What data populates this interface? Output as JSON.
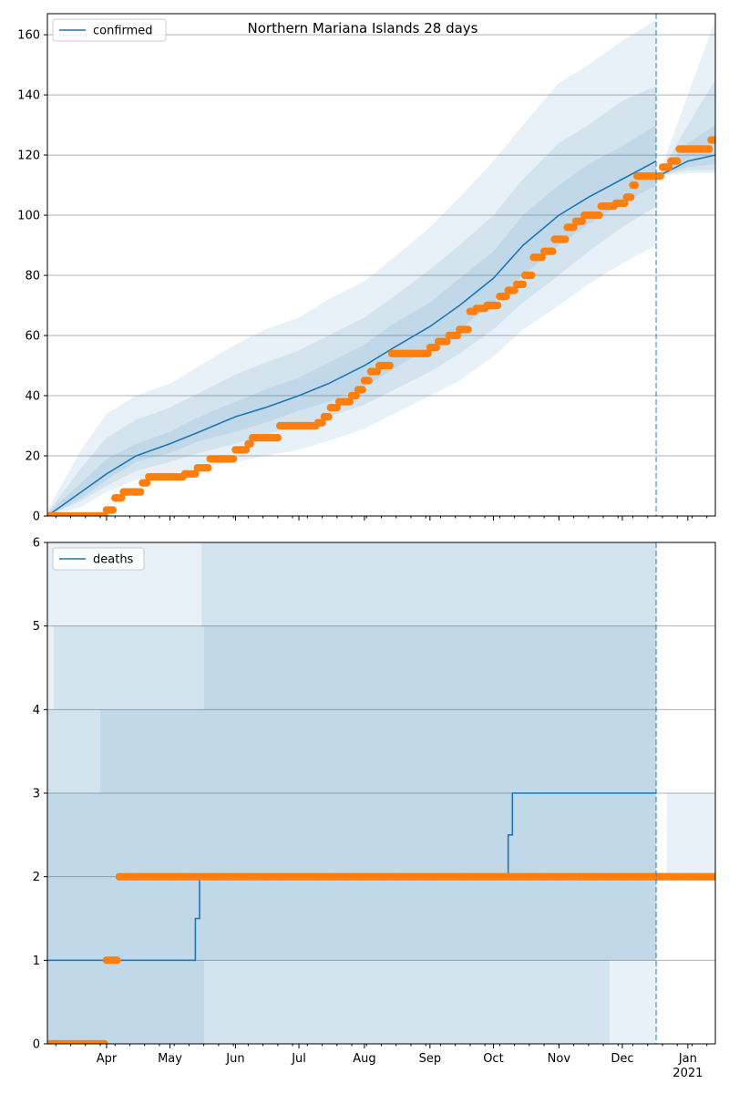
{
  "title": "Northern Mariana Islands 28 days",
  "colors": {
    "model": "#1f77b4",
    "observed": "#ff7f0e",
    "band": "#1f77b4",
    "grid": "#b0b0b0",
    "forecast_line": "#1f77b4"
  },
  "x_axis": {
    "months": [
      "Apr",
      "May",
      "Jun",
      "Jul",
      "Aug",
      "Sep",
      "Oct",
      "Nov",
      "Dec",
      "Jan"
    ],
    "year_label": "2021",
    "start": "2020-03-04",
    "end": "2021-01-14",
    "forecast_start": "2020-12-17"
  },
  "chart_data": [
    {
      "type": "line",
      "name": "confirmed-panel",
      "legend": "confirmed",
      "ylim": [
        0,
        167
      ],
      "yticks": [
        0,
        20,
        40,
        60,
        80,
        100,
        120,
        140,
        160
      ],
      "grid": true,
      "legend_position": "top-left",
      "model_series": {
        "name": "confirmed",
        "x": [
          "2020-03-04",
          "2020-03-20",
          "2020-04-01",
          "2020-04-15",
          "2020-05-01",
          "2020-05-15",
          "2020-06-01",
          "2020-06-15",
          "2020-07-01",
          "2020-07-15",
          "2020-08-01",
          "2020-08-15",
          "2020-09-01",
          "2020-09-15",
          "2020-10-01",
          "2020-10-15",
          "2020-11-01",
          "2020-11-15",
          "2020-12-01",
          "2020-12-17",
          "2020-12-18",
          "2021-01-01",
          "2021-01-14"
        ],
        "y": [
          0,
          8,
          14,
          20,
          24,
          28,
          33,
          36,
          40,
          44,
          50,
          56,
          63,
          70,
          79,
          90,
          100,
          106,
          112,
          118,
          113,
          118,
          120
        ]
      },
      "bands": [
        {
          "lower": [
            0,
            3,
            8,
            12,
            14,
            16,
            18,
            20,
            22,
            25,
            29,
            34,
            40,
            45,
            53,
            62,
            70,
            77,
            84,
            90,
            113,
            114,
            114
          ],
          "upper": [
            2,
            22,
            34,
            40,
            44,
            50,
            57,
            62,
            66,
            72,
            78,
            86,
            96,
            106,
            118,
            130,
            144,
            150,
            158,
            165,
            113,
            140,
            165
          ]
        },
        {
          "lower": [
            0,
            5,
            10,
            15,
            18,
            21,
            24,
            27,
            30,
            33,
            37,
            42,
            48,
            54,
            62,
            71,
            80,
            88,
            96,
            103,
            113,
            115,
            115
          ],
          "upper": [
            1,
            16,
            26,
            32,
            36,
            41,
            47,
            51,
            55,
            60,
            66,
            73,
            82,
            90,
            100,
            112,
            124,
            130,
            138,
            143,
            113,
            130,
            145
          ]
        },
        {
          "lower": [
            0,
            6,
            12,
            18,
            21,
            25,
            28,
            31,
            35,
            38,
            43,
            49,
            56,
            62,
            71,
            80,
            90,
            97,
            104,
            110,
            113,
            116,
            117
          ],
          "upper": [
            1,
            11,
            19,
            24,
            28,
            33,
            38,
            42,
            46,
            51,
            57,
            64,
            71,
            79,
            88,
            100,
            110,
            117,
            123,
            130,
            113,
            124,
            130
          ]
        }
      ],
      "observed": {
        "x": [
          "2020-03-04",
          "2020-03-31",
          "2020-04-01",
          "2020-04-05",
          "2020-04-09",
          "2020-04-18",
          "2020-04-21",
          "2020-05-08",
          "2020-05-10",
          "2020-05-14",
          "2020-05-20",
          "2020-06-01",
          "2020-06-03",
          "2020-06-07",
          "2020-06-09",
          "2020-06-22",
          "2020-06-25",
          "2020-07-02",
          "2020-07-10",
          "2020-07-13",
          "2020-07-16",
          "2020-07-20",
          "2020-07-26",
          "2020-07-29",
          "2020-08-01",
          "2020-08-04",
          "2020-08-08",
          "2020-08-14",
          "2020-08-18",
          "2020-09-01",
          "2020-09-05",
          "2020-09-10",
          "2020-09-15",
          "2020-09-20",
          "2020-09-23",
          "2020-09-28",
          "2020-10-04",
          "2020-10-08",
          "2020-10-12",
          "2020-10-16",
          "2020-10-20",
          "2020-10-25",
          "2020-10-30",
          "2020-11-05",
          "2020-11-09",
          "2020-11-13",
          "2020-11-21",
          "2020-11-28",
          "2020-12-03",
          "2020-12-06",
          "2020-12-08",
          "2020-12-14",
          "2020-12-18",
          "2020-12-20",
          "2020-12-24",
          "2020-12-28",
          "2021-01-02",
          "2021-01-07",
          "2021-01-12",
          "2021-01-14"
        ],
        "y": [
          0,
          0,
          2,
          6,
          8,
          11,
          13,
          14,
          14,
          16,
          19,
          22,
          22,
          24,
          26,
          30,
          30,
          30,
          31,
          33,
          36,
          38,
          40,
          42,
          45,
          48,
          50,
          54,
          54,
          56,
          58,
          60,
          62,
          68,
          69,
          70,
          73,
          75,
          77,
          80,
          86,
          88,
          92,
          96,
          98,
          100,
          103,
          104,
          106,
          110,
          113,
          113,
          113,
          116,
          118,
          122,
          122,
          122,
          125,
          125
        ]
      }
    },
    {
      "type": "line",
      "name": "deaths-panel",
      "legend": "deaths",
      "ylim": [
        0,
        6
      ],
      "yticks": [
        0,
        1,
        2,
        3,
        4,
        5,
        6
      ],
      "grid": true,
      "legend_position": "top-left",
      "model_series": {
        "name": "deaths",
        "x": [
          "2020-03-04",
          "2020-05-13",
          "2020-05-13",
          "2020-05-15",
          "2020-05-15",
          "2020-10-08",
          "2020-10-08",
          "2020-10-10",
          "2020-10-10",
          "2020-12-17"
        ],
        "y": [
          1,
          1,
          1.5,
          1.5,
          2,
          2,
          2.5,
          2.5,
          3,
          3
        ]
      },
      "bands": [
        {
          "x": [
            "2020-03-04",
            "2020-03-07",
            "2020-03-07",
            "2020-05-16",
            "2020-05-16",
            "2020-11-25",
            "2020-11-25",
            "2020-12-17"
          ],
          "lower": [
            0,
            0,
            0,
            0,
            0,
            0,
            0,
            0
          ],
          "upper": [
            6,
            6,
            6,
            6,
            6,
            6,
            6,
            6
          ]
        },
        {
          "x": [
            "2020-03-04",
            "2020-03-07",
            "2020-03-07",
            "2020-05-16",
            "2020-05-16",
            "2020-11-25",
            "2020-11-25",
            "2020-12-17"
          ],
          "lower": [
            0,
            0,
            0,
            0,
            0,
            0,
            1,
            1
          ],
          "upper": [
            4,
            4,
            5,
            5,
            6,
            6,
            6,
            6
          ]
        },
        {
          "x": [
            "2020-03-04",
            "2020-03-29",
            "2020-03-29",
            "2020-05-17",
            "2020-05-17",
            "2020-12-17"
          ],
          "lower": [
            0,
            0,
            0,
            0,
            1,
            1
          ],
          "upper": [
            3,
            3,
            4,
            4,
            5,
            5
          ]
        }
      ],
      "forecast_bands": [
        {
          "x": [
            "2020-12-22",
            "2021-01-14"
          ],
          "lower": [
            2,
            2
          ],
          "upper": [
            3,
            3
          ]
        }
      ],
      "observed": {
        "x": [
          "2020-03-04",
          "2020-03-31",
          "2020-04-01",
          "2020-04-06",
          "2020-04-07",
          "2021-01-14"
        ],
        "y": [
          0,
          0,
          1,
          1,
          2,
          2
        ]
      }
    }
  ]
}
